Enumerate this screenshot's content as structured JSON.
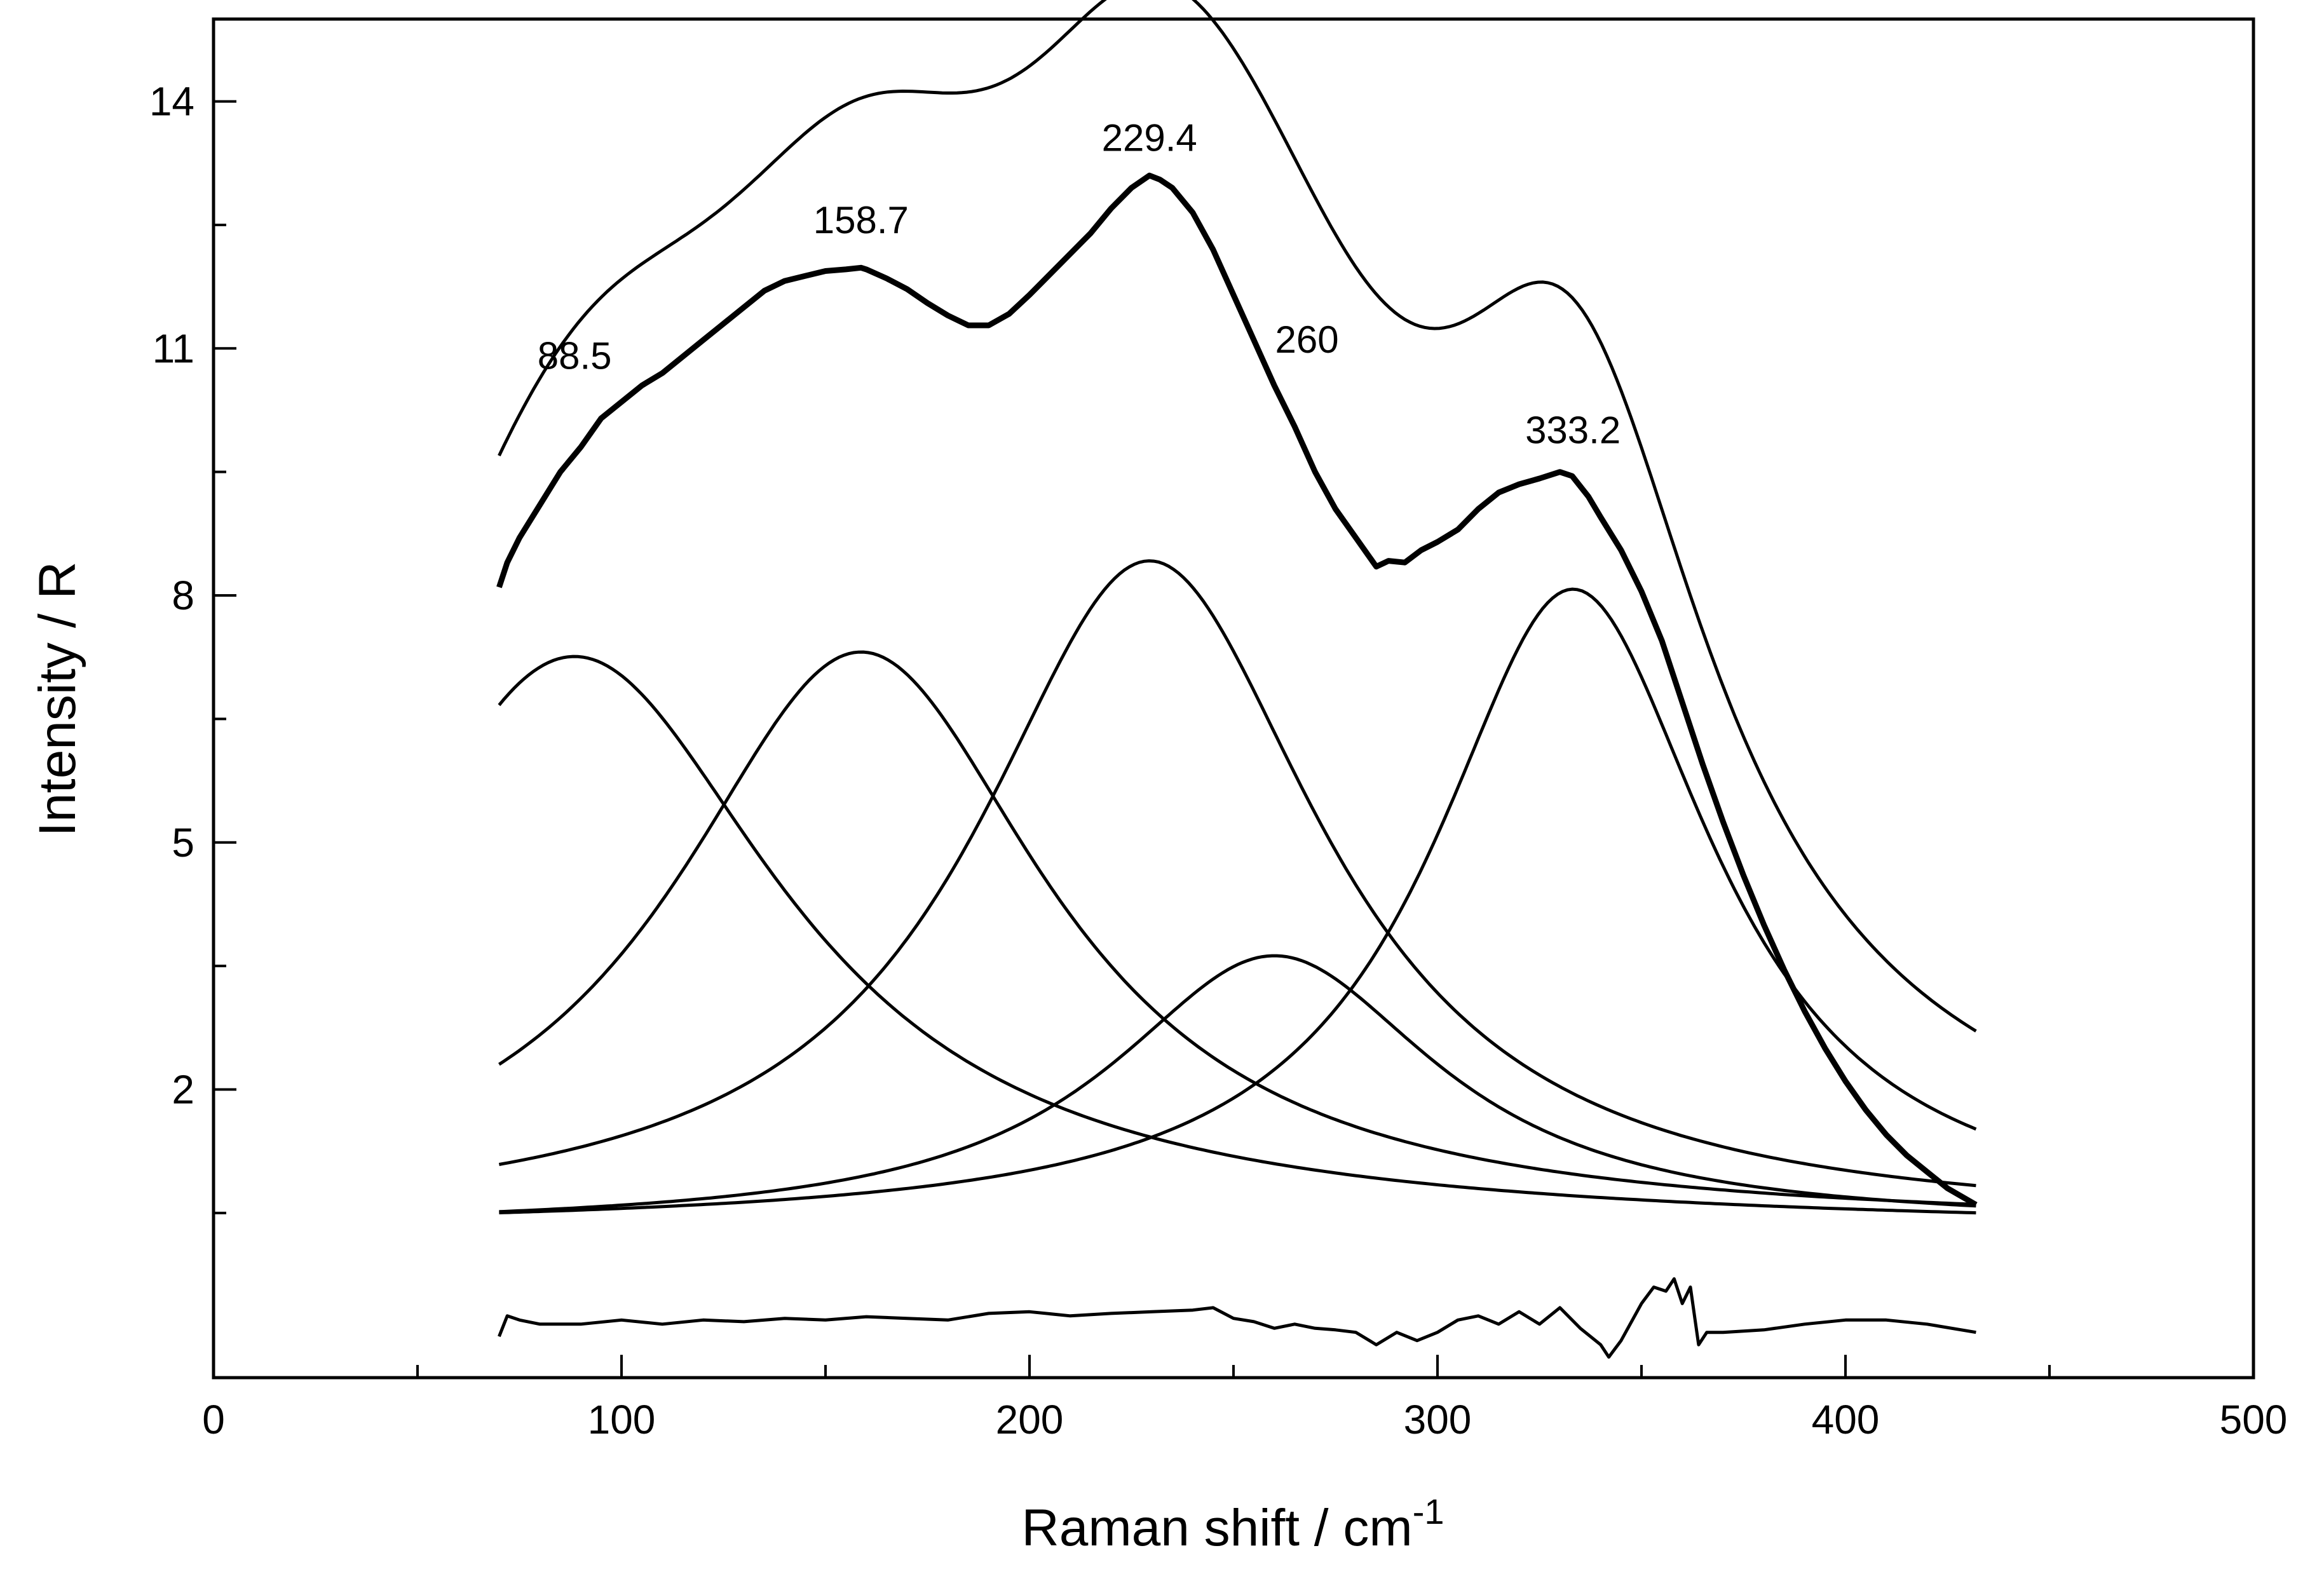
{
  "chart_data": {
    "type": "line",
    "title": "",
    "xlabel": "Raman shift / cm",
    "xlabel_superscript": "-1",
    "ylabel": "Intensity / R",
    "xlim": [
      0,
      500
    ],
    "ylim": [
      -1.5,
      15.0
    ],
    "x_ticks": [
      0,
      100,
      200,
      300,
      400,
      500
    ],
    "x_tick_labels": [
      "0",
      "100",
      "200",
      "300",
      "400",
      "500"
    ],
    "x_minor_ticks": [
      50,
      150,
      250,
      350,
      450
    ],
    "y_ticks": [
      2,
      5,
      8,
      11,
      14
    ],
    "y_tick_labels": [
      "2",
      "5",
      "8",
      "11",
      "14"
    ],
    "y_minor_ticks": [
      0.5,
      3.5,
      6.5,
      9.5,
      12.5
    ],
    "grid": false,
    "colors": {
      "line": "#000000",
      "background": "#ffffff"
    },
    "fit_range": [
      70,
      432
    ],
    "baseline_level": 0.31,
    "peak_labels": [
      {
        "text": "88.5",
        "x": 88.5,
        "y": 10.75
      },
      {
        "text": "158.7",
        "x": 158.7,
        "y": 12.4
      },
      {
        "text": "229.4",
        "x": 229.4,
        "y": 13.4
      },
      {
        "text": "260",
        "x": 268,
        "y": 10.95
      },
      {
        "text": "333.2",
        "x": 333.2,
        "y": 9.85
      }
    ],
    "components": [
      {
        "name": "peak 88.5",
        "center": 88.5,
        "amplitude": 6.95,
        "width": 62,
        "tail_level": 0.2
      },
      {
        "name": "peak 158.7",
        "center": 158.7,
        "amplitude": 7.0,
        "width": 56,
        "tail_level": 0.36
      },
      {
        "name": "peak 229.4",
        "center": 229.4,
        "amplitude": 8.1,
        "width": 52,
        "tail_level": 0.4
      },
      {
        "name": "peak 260",
        "center": 260.0,
        "amplitude": 3.3,
        "width": 49,
        "tail_level": 0.42
      },
      {
        "name": "peak 333.2",
        "center": 333.2,
        "amplitude": 7.75,
        "width": 42,
        "tail_level": 0.4
      }
    ],
    "series": [
      {
        "name": "experimental",
        "x": [
          70,
          72,
          75,
          80,
          85,
          90,
          95,
          100,
          105,
          110,
          115,
          120,
          125,
          130,
          135,
          140,
          145,
          150,
          155,
          158.7,
          160,
          165,
          170,
          175,
          180,
          185,
          190,
          195,
          200,
          205,
          210,
          215,
          220,
          225,
          229.4,
          232,
          235,
          240,
          245,
          250,
          255,
          260,
          265,
          270,
          275,
          280,
          285,
          288,
          292,
          296,
          300,
          305,
          310,
          315,
          320,
          325,
          330,
          333,
          337,
          340,
          345,
          350,
          355,
          360,
          365,
          370,
          375,
          380,
          385,
          390,
          395,
          400,
          405,
          410,
          415,
          420,
          425,
          432
        ],
        "y": [
          8.1,
          8.4,
          8.7,
          9.1,
          9.5,
          9.8,
          10.15,
          10.35,
          10.55,
          10.7,
          10.9,
          11.1,
          11.3,
          11.5,
          11.7,
          11.82,
          11.88,
          11.94,
          11.96,
          11.98,
          11.96,
          11.85,
          11.72,
          11.55,
          11.4,
          11.28,
          11.28,
          11.42,
          11.65,
          11.9,
          12.15,
          12.4,
          12.7,
          12.95,
          13.1,
          13.05,
          12.95,
          12.65,
          12.2,
          11.65,
          11.1,
          10.55,
          10.05,
          9.5,
          9.05,
          8.7,
          8.35,
          8.42,
          8.4,
          8.55,
          8.65,
          8.8,
          9.05,
          9.25,
          9.35,
          9.42,
          9.5,
          9.45,
          9.2,
          8.95,
          8.55,
          8.05,
          7.45,
          6.7,
          5.95,
          5.25,
          4.6,
          4.0,
          3.45,
          2.95,
          2.5,
          2.1,
          1.75,
          1.45,
          1.2,
          1.0,
          0.8,
          0.6
        ]
      },
      {
        "name": "residual",
        "x": [
          70,
          72,
          75,
          80,
          90,
          100,
          110,
          120,
          130,
          140,
          150,
          160,
          170,
          180,
          190,
          200,
          210,
          220,
          230,
          240,
          245,
          250,
          255,
          260,
          265,
          270,
          275,
          280,
          285,
          290,
          295,
          300,
          305,
          310,
          315,
          320,
          325,
          330,
          335,
          340,
          342,
          345,
          350,
          353,
          356,
          358,
          360,
          362,
          364,
          366,
          370,
          380,
          390,
          400,
          410,
          420,
          432
        ],
        "y": [
          -1.0,
          -0.75,
          -0.8,
          -0.85,
          -0.85,
          -0.8,
          -0.85,
          -0.8,
          -0.82,
          -0.78,
          -0.8,
          -0.76,
          -0.78,
          -0.8,
          -0.72,
          -0.7,
          -0.75,
          -0.72,
          -0.7,
          -0.68,
          -0.65,
          -0.78,
          -0.82,
          -0.9,
          -0.85,
          -0.9,
          -0.92,
          -0.95,
          -1.1,
          -0.95,
          -1.05,
          -0.95,
          -0.8,
          -0.75,
          -0.85,
          -0.7,
          -0.85,
          -0.65,
          -0.9,
          -1.1,
          -1.25,
          -1.05,
          -0.6,
          -0.4,
          -0.45,
          -0.3,
          -0.6,
          -0.4,
          -1.1,
          -0.95,
          -0.95,
          -0.92,
          -0.85,
          -0.8,
          -0.8,
          -0.85,
          -0.95
        ]
      }
    ]
  }
}
